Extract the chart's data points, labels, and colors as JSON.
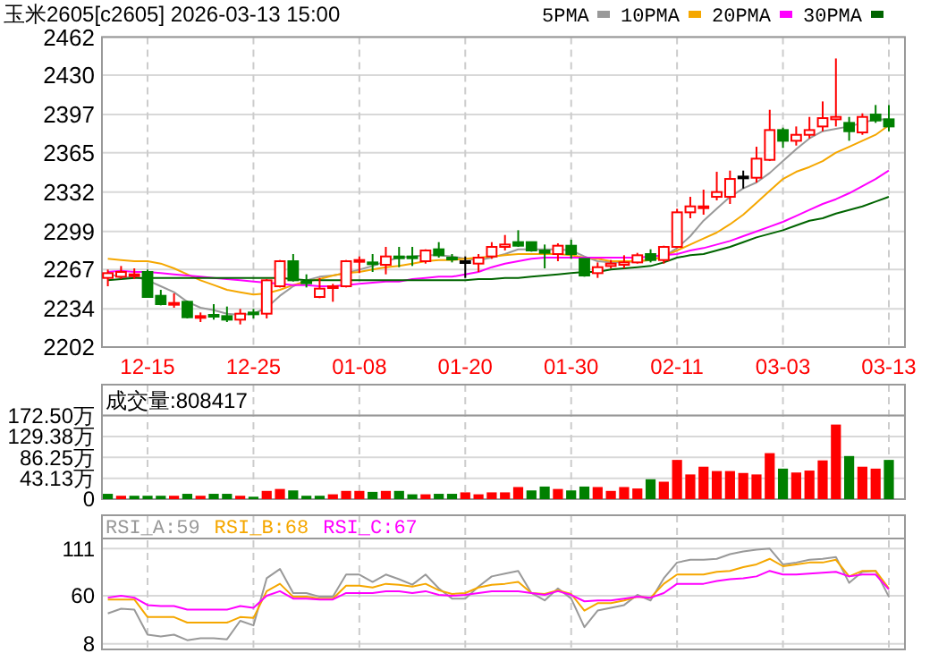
{
  "chart_data": [
    {
      "type": "candlestick",
      "title": "玉米2605[c2605] 2026-03-13 15:00",
      "categories": [
        null,
        null,
        null,
        "12-15",
        null,
        null,
        null,
        null,
        null,
        null,
        null,
        "12-25",
        null,
        null,
        null,
        null,
        null,
        null,
        null,
        "01-08",
        null,
        null,
        null,
        null,
        null,
        null,
        null,
        "01-20",
        null,
        null,
        null,
        null,
        null,
        null,
        null,
        "01-30",
        null,
        null,
        null,
        null,
        null,
        null,
        null,
        "02-11",
        null,
        null,
        null,
        null,
        null,
        null,
        null,
        "03-03",
        null,
        null,
        null,
        null,
        null,
        null,
        null,
        "03-13"
      ],
      "ohlc": [
        [
          2260,
          2267,
          2253,
          2264
        ],
        [
          2261,
          2270,
          2259,
          2265
        ],
        [
          2262,
          2268,
          2259,
          2263
        ],
        [
          2265,
          2267,
          2244,
          2244
        ],
        [
          2245,
          2250,
          2237,
          2238
        ],
        [
          2238,
          2247,
          2235,
          2239
        ],
        [
          2240,
          2241,
          2226,
          2227
        ],
        [
          2227,
          2231,
          2223,
          2228
        ],
        [
          2229,
          2238,
          2225,
          2228
        ],
        [
          2228,
          2236,
          2223,
          2225
        ],
        [
          2225,
          2234,
          2221,
          2230
        ],
        [
          2231,
          2234,
          2226,
          2230
        ],
        [
          2230,
          2259,
          2226,
          2258
        ],
        [
          2253,
          2275,
          2252,
          2274
        ],
        [
          2274,
          2280,
          2257,
          2258
        ],
        [
          2257,
          2263,
          2252,
          2256
        ],
        [
          2244,
          2260,
          2243,
          2251
        ],
        [
          2252,
          2255,
          2240,
          2253
        ],
        [
          2253,
          2275,
          2252,
          2274
        ],
        [
          2274,
          2278,
          2264,
          2275
        ],
        [
          2273,
          2280,
          2265,
          2272
        ],
        [
          2271,
          2286,
          2263,
          2278
        ],
        [
          2278,
          2286,
          2269,
          2277
        ],
        [
          2278,
          2286,
          2270,
          2277
        ],
        [
          2274,
          2284,
          2272,
          2283
        ],
        [
          2284,
          2290,
          2277,
          2279
        ],
        [
          2277,
          2280,
          2273,
          2276
        ],
        [
          2274,
          2278,
          2260,
          2274
        ],
        [
          2272,
          2280,
          2265,
          2277
        ],
        [
          2278,
          2290,
          2276,
          2286
        ],
        [
          2286,
          2296,
          2283,
          2288
        ],
        [
          2290,
          2300,
          2286,
          2287
        ],
        [
          2290,
          2290,
          2282,
          2283
        ],
        [
          2283,
          2288,
          2268,
          2281
        ],
        [
          2280,
          2289,
          2274,
          2287
        ],
        [
          2287,
          2292,
          2276,
          2280
        ],
        [
          2276,
          2276,
          2261,
          2262
        ],
        [
          2264,
          2273,
          2260,
          2269
        ],
        [
          2270,
          2275,
          2268,
          2272
        ],
        [
          2271,
          2279,
          2268,
          2273
        ],
        [
          2273,
          2281,
          2272,
          2279
        ],
        [
          2280,
          2284,
          2273,
          2275
        ],
        [
          2275,
          2287,
          2272,
          2286
        ],
        [
          2286,
          2318,
          2285,
          2315
        ],
        [
          2315,
          2328,
          2310,
          2320
        ],
        [
          2319,
          2334,
          2313,
          2320
        ],
        [
          2328,
          2349,
          2325,
          2332
        ],
        [
          2328,
          2350,
          2322,
          2343
        ],
        [
          2345,
          2350,
          2335,
          2345
        ],
        [
          2344,
          2370,
          2340,
          2360
        ],
        [
          2359,
          2401,
          2358,
          2384
        ],
        [
          2384,
          2386,
          2369,
          2375
        ],
        [
          2375,
          2387,
          2371,
          2380
        ],
        [
          2380,
          2395,
          2377,
          2384
        ],
        [
          2387,
          2408,
          2383,
          2394
        ],
        [
          2393,
          2444,
          2387,
          2395
        ],
        [
          2390,
          2395,
          2375,
          2383
        ],
        [
          2382,
          2398,
          2380,
          2395
        ],
        [
          2397,
          2405,
          2390,
          2392
        ],
        [
          2393,
          2405,
          2383,
          2387
        ]
      ],
      "colors": [
        "#ff0000",
        "#ff0000",
        "#ff0000",
        "#008000",
        "#008000",
        "#ff0000",
        "#008000",
        "#ff0000",
        "#008000",
        "#008000",
        "#ff0000",
        "#008000",
        "#ff0000",
        "#ff0000",
        "#008000",
        "#008000",
        "#ff0000",
        "#ff0000",
        "#ff0000",
        "#ff0000",
        "#008000",
        "#ff0000",
        "#008000",
        "#008000",
        "#ff0000",
        "#008000",
        "#008000",
        "#000000",
        "#ff0000",
        "#ff0000",
        "#ff0000",
        "#008000",
        "#008000",
        "#008000",
        "#ff0000",
        "#008000",
        "#008000",
        "#ff0000",
        "#ff0000",
        "#ff0000",
        "#ff0000",
        "#008000",
        "#ff0000",
        "#ff0000",
        "#ff0000",
        "#ff0000",
        "#ff0000",
        "#ff0000",
        "#000000",
        "#ff0000",
        "#ff0000",
        "#008000",
        "#ff0000",
        "#ff0000",
        "#ff0000",
        "#ff0000",
        "#008000",
        "#ff0000",
        "#008000",
        "#008000"
      ],
      "series": [
        {
          "name": "5PMA",
          "type": "line",
          "color": "#999999",
          "values": [
            2264,
            2260,
            2261,
            2258,
            2253,
            2248,
            2240,
            2235,
            2233,
            2230,
            2229,
            2230,
            2235,
            2245,
            2253,
            2258,
            2261,
            2262,
            2264,
            2267,
            2270,
            2274,
            2277,
            2278,
            2279,
            2279,
            2278,
            2276,
            2275,
            2277,
            2280,
            2284,
            2284,
            2284,
            2284,
            2283,
            2278,
            2274,
            2273,
            2273,
            2274,
            2275,
            2278,
            2285,
            2295,
            2308,
            2318,
            2328,
            2335,
            2340,
            2348,
            2358,
            2368,
            2377,
            2383,
            2385,
            2387,
            2390,
            2393,
            2393
          ]
        },
        {
          "name": "10PMA",
          "type": "line",
          "color": "#f5a700",
          "values": [
            2276,
            2275,
            2274,
            2274,
            2272,
            2268,
            2263,
            2258,
            2254,
            2250,
            2248,
            2246,
            2247,
            2250,
            2254,
            2257,
            2259,
            2262,
            2264,
            2265,
            2267,
            2269,
            2270,
            2272,
            2274,
            2275,
            2275,
            2276,
            2277,
            2278,
            2279,
            2280,
            2280,
            2280,
            2280,
            2279,
            2277,
            2276,
            2274,
            2274,
            2274,
            2275,
            2278,
            2283,
            2288,
            2293,
            2298,
            2305,
            2313,
            2323,
            2333,
            2343,
            2349,
            2353,
            2358,
            2365,
            2370,
            2375,
            2380,
            2388
          ]
        },
        {
          "name": "20PMA",
          "type": "line",
          "color": "#ff00ff",
          "values": [
            2265,
            2266,
            2265,
            2265,
            2264,
            2263,
            2262,
            2261,
            2260,
            2259,
            2258,
            2257,
            2256,
            2255,
            2254,
            2254,
            2253,
            2253,
            2254,
            2255,
            2256,
            2257,
            2257,
            2259,
            2260,
            2261,
            2261,
            2263,
            2265,
            2269,
            2272,
            2274,
            2276,
            2277,
            2277,
            2277,
            2277,
            2277,
            2277,
            2277,
            2277,
            2278,
            2279,
            2280,
            2283,
            2285,
            2288,
            2291,
            2295,
            2299,
            2303,
            2307,
            2312,
            2317,
            2322,
            2326,
            2331,
            2337,
            2343,
            2350
          ]
        },
        {
          "name": "30PMA",
          "type": "line",
          "color": "#006400",
          "values": [
            2258,
            2259,
            2260,
            2260,
            2260,
            2260,
            2260,
            2260,
            2260,
            2260,
            2260,
            2260,
            2260,
            2260,
            2259,
            2258,
            2258,
            2258,
            2258,
            2258,
            2258,
            2258,
            2258,
            2258,
            2258,
            2258,
            2258,
            2258,
            2259,
            2259,
            2260,
            2260,
            2261,
            2262,
            2263,
            2264,
            2265,
            2265,
            2267,
            2268,
            2269,
            2270,
            2273,
            2277,
            2279,
            2280,
            2283,
            2286,
            2290,
            2294,
            2297,
            2300,
            2304,
            2308,
            2310,
            2314,
            2317,
            2320,
            2324,
            2328
          ]
        }
      ],
      "ylim": [
        2202,
        2462
      ],
      "yticks": [
        2462,
        2430,
        2397,
        2365,
        2332,
        2299,
        2267,
        2234,
        2202
      ],
      "grid": true,
      "legend": "top right"
    },
    {
      "type": "bar",
      "title": "成交量:808417",
      "categories": [
        null,
        null,
        null,
        null,
        null,
        null,
        null,
        null,
        null,
        null,
        null,
        null,
        null,
        null,
        null,
        null,
        null,
        null,
        null,
        null,
        null,
        null,
        null,
        null,
        null,
        null,
        null,
        null,
        null,
        null,
        null,
        null,
        null,
        null,
        null,
        null,
        null,
        null,
        null,
        null,
        null,
        null,
        null,
        null,
        null,
        null,
        null,
        null,
        null,
        null,
        null,
        null,
        null,
        null,
        null,
        null,
        null,
        null,
        null,
        null
      ],
      "values": [
        11,
        7,
        7,
        7,
        7,
        7,
        11,
        7,
        11,
        11,
        7,
        5,
        17,
        21,
        18,
        7,
        7,
        10,
        17,
        17,
        15,
        17,
        17,
        10,
        10,
        11,
        11,
        14,
        10,
        14,
        14,
        25,
        18,
        26,
        21,
        18,
        26,
        25,
        17,
        25,
        22,
        41,
        36,
        81,
        51,
        67,
        58,
        58,
        54,
        51,
        95,
        63,
        55,
        59,
        80,
        154,
        89,
        67,
        63,
        81
      ],
      "colors": [
        "#008000",
        "#ff0000",
        "#008000",
        "#008000",
        "#008000",
        "#ff0000",
        "#008000",
        "#ff0000",
        "#008000",
        "#008000",
        "#ff0000",
        "#008000",
        "#ff0000",
        "#ff0000",
        "#008000",
        "#008000",
        "#008000",
        "#ff0000",
        "#ff0000",
        "#ff0000",
        "#008000",
        "#ff0000",
        "#008000",
        "#008000",
        "#ff0000",
        "#008000",
        "#008000",
        "#ff0000",
        "#ff0000",
        "#ff0000",
        "#ff0000",
        "#ff0000",
        "#008000",
        "#008000",
        "#ff0000",
        "#008000",
        "#008000",
        "#ff0000",
        "#ff0000",
        "#ff0000",
        "#ff0000",
        "#008000",
        "#ff0000",
        "#ff0000",
        "#ff0000",
        "#ff0000",
        "#ff0000",
        "#ff0000",
        "#ff0000",
        "#ff0000",
        "#ff0000",
        "#008000",
        "#ff0000",
        "#ff0000",
        "#ff0000",
        "#ff0000",
        "#008000",
        "#ff0000",
        "#ff0000",
        "#008000"
      ],
      "ylim": [
        0,
        172.5
      ],
      "yticks": [
        0,
        {
          "value": 43.13,
          "label": "43.13万"
        },
        {
          "value": 86.25,
          "label": "86.25万"
        },
        {
          "value": 129.38,
          "label": "129.38万"
        },
        {
          "value": 172.5,
          "label": "172.50万"
        }
      ],
      "grid": true,
      "tick_labels": "y"
    },
    {
      "type": "line",
      "categories": [
        null,
        null,
        null,
        null,
        null,
        null,
        null,
        null,
        null,
        null,
        null,
        null,
        null,
        null,
        null,
        null,
        null,
        null,
        null,
        null,
        null,
        null,
        null,
        null,
        null,
        null,
        null,
        null,
        null,
        null,
        null,
        null,
        null,
        null,
        null,
        null,
        null,
        null,
        null,
        null,
        null,
        null,
        null,
        null,
        null,
        null,
        null,
        null,
        null,
        null,
        null,
        null,
        null,
        null,
        null,
        null,
        null,
        null,
        null,
        null
      ],
      "series": [
        {
          "name": "RSI_A:59",
          "color": "#999999",
          "values": [
            41,
            46,
            45,
            18,
            16,
            18,
            12,
            14,
            14,
            13,
            33,
            28,
            79,
            89,
            63,
            63,
            59,
            59,
            83,
            83,
            75,
            83,
            78,
            72,
            83,
            68,
            57,
            57,
            70,
            81,
            84,
            87,
            63,
            55,
            68,
            57,
            26,
            44,
            47,
            50,
            61,
            55,
            79,
            96,
            99,
            99,
            100,
            105,
            108,
            110,
            111,
            94,
            96,
            99,
            100,
            102,
            74,
            86,
            87,
            59
          ]
        },
        {
          "name": "RSI_B:68",
          "color": "#f5a700",
          "values": [
            56,
            56,
            56,
            37,
            37,
            37,
            31,
            31,
            31,
            31,
            37,
            36,
            65,
            73,
            59,
            59,
            57,
            57,
            71,
            71,
            69,
            73,
            72,
            70,
            73,
            66,
            62,
            63,
            69,
            72,
            73,
            75,
            63,
            62,
            66,
            62,
            44,
            52,
            52,
            55,
            59,
            58,
            73,
            83,
            83,
            83,
            86,
            87,
            91,
            94,
            100,
            92,
            94,
            96,
            96,
            99,
            81,
            87,
            87,
            68
          ]
        },
        {
          "name": "RSI_C:67",
          "color": "#ff00ff",
          "values": [
            58,
            60,
            58,
            50,
            49,
            49,
            45,
            45,
            45,
            45,
            49,
            47,
            60,
            65,
            57,
            57,
            56,
            56,
            63,
            63,
            63,
            65,
            65,
            63,
            65,
            61,
            60,
            61,
            63,
            65,
            65,
            65,
            63,
            61,
            65,
            61,
            54,
            55,
            55,
            57,
            59,
            58,
            63,
            73,
            73,
            73,
            76,
            78,
            79,
            81,
            87,
            83,
            83,
            84,
            85,
            86,
            81,
            83,
            83,
            67
          ]
        }
      ],
      "ylim": [
        2,
        122
      ],
      "yticks": [
        8,
        60,
        111
      ],
      "grid": true,
      "legend": "top left",
      "tick_labels": "y"
    }
  ]
}
